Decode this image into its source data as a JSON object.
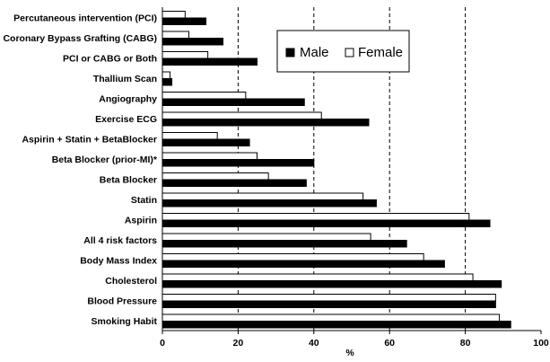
{
  "chart_data": {
    "type": "bar",
    "orientation": "horizontal",
    "title": "",
    "xlabel": "%",
    "ylabel": "",
    "xlim": [
      0,
      100
    ],
    "xticks": [
      0,
      20,
      40,
      60,
      80,
      100
    ],
    "grid": "dashed vertical lines at 20, 40, 60, 80",
    "legend_placement": "top-center",
    "categories": [
      "Percutaneous intervention (PCI)",
      "Coronary Bypass Grafting (CABG)",
      "PCI or CABG or Both",
      "Thallium Scan",
      "Angiography",
      "Exercise ECG",
      "Aspirin + Statin + BetaBlocker",
      "Beta Blocker (prior-MI)*",
      "Beta Blocker",
      "Statin",
      "Aspirin",
      "All 4 risk factors",
      "Body Mass Index",
      "Cholesterol",
      "Blood Pressure",
      "Smoking Habit"
    ],
    "series": [
      {
        "name": "Female",
        "color": "#ffffff",
        "values": [
          6,
          7,
          12,
          2,
          22,
          42,
          14.5,
          25,
          28,
          53,
          81,
          55,
          69,
          82,
          88,
          89
        ]
      },
      {
        "name": "Male",
        "color": "#000000",
        "values": [
          11.5,
          16,
          25,
          2.5,
          37.5,
          54.5,
          23,
          40,
          38,
          56.5,
          86.5,
          64.5,
          74.5,
          89.5,
          88,
          92
        ]
      }
    ]
  }
}
